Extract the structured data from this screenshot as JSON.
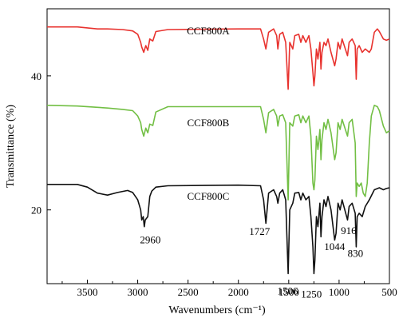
{
  "chart_data": {
    "type": "line",
    "title": "",
    "xlabel": "Wavenumbers (cm⁻¹)",
    "ylabel": "Transmittance (%)",
    "xlim": [
      3900,
      500
    ],
    "ylim": [
      9,
      50
    ],
    "x_reversed": true,
    "x_ticks": [
      "3500",
      "3000",
      "2500",
      "2000",
      "1500",
      "1000",
      "500"
    ],
    "y_ticks": [
      "20",
      "40"
    ],
    "grid": false,
    "legend": "none",
    "series": [
      {
        "name": "CCF800A",
        "color": "#e8322e",
        "points": [
          [
            3900,
            47.3
          ],
          [
            3600,
            47.3
          ],
          [
            3400,
            47.0
          ],
          [
            3300,
            47.0
          ],
          [
            3150,
            46.9
          ],
          [
            3050,
            46.7
          ],
          [
            3000,
            46.2
          ],
          [
            2970,
            45.0
          ],
          [
            2960,
            44.3
          ],
          [
            2940,
            43.5
          ],
          [
            2920,
            44.5
          ],
          [
            2900,
            43.8
          ],
          [
            2880,
            45.5
          ],
          [
            2850,
            45.2
          ],
          [
            2820,
            46.6
          ],
          [
            2700,
            46.9
          ],
          [
            2000,
            47.0
          ],
          [
            1780,
            47.0
          ],
          [
            1750,
            45.5
          ],
          [
            1727,
            44.0
          ],
          [
            1700,
            46.5
          ],
          [
            1650,
            47.0
          ],
          [
            1620,
            46.0
          ],
          [
            1608,
            44.0
          ],
          [
            1590,
            46.2
          ],
          [
            1560,
            46.5
          ],
          [
            1530,
            45.0
          ],
          [
            1506,
            38.0
          ],
          [
            1490,
            45.0
          ],
          [
            1460,
            44.0
          ],
          [
            1440,
            46.0
          ],
          [
            1400,
            46.2
          ],
          [
            1380,
            45.0
          ],
          [
            1360,
            46.0
          ],
          [
            1330,
            45.0
          ],
          [
            1300,
            46.0
          ],
          [
            1280,
            44.0
          ],
          [
            1260,
            40.5
          ],
          [
            1250,
            38.5
          ],
          [
            1240,
            40.0
          ],
          [
            1225,
            44.0
          ],
          [
            1210,
            42.5
          ],
          [
            1190,
            45.0
          ],
          [
            1180,
            41.0
          ],
          [
            1170,
            43.5
          ],
          [
            1150,
            45.0
          ],
          [
            1130,
            44.5
          ],
          [
            1110,
            45.5
          ],
          [
            1080,
            43.5
          ],
          [
            1044,
            41.5
          ],
          [
            1030,
            42.5
          ],
          [
            1010,
            45.0
          ],
          [
            990,
            44.0
          ],
          [
            970,
            45.5
          ],
          [
            916,
            43.0
          ],
          [
            900,
            45.0
          ],
          [
            870,
            45.5
          ],
          [
            840,
            44.5
          ],
          [
            830,
            39.5
          ],
          [
            820,
            44.0
          ],
          [
            800,
            44.5
          ],
          [
            770,
            43.5
          ],
          [
            740,
            44.0
          ],
          [
            700,
            43.5
          ],
          [
            680,
            44.0
          ],
          [
            650,
            46.5
          ],
          [
            620,
            47.0
          ],
          [
            600,
            46.6
          ],
          [
            560,
            45.5
          ],
          [
            530,
            45.3
          ],
          [
            500,
            45.5
          ]
        ]
      },
      {
        "name": "CCF800B",
        "color": "#72bf44",
        "points": [
          [
            3900,
            35.6
          ],
          [
            3600,
            35.5
          ],
          [
            3400,
            35.3
          ],
          [
            3300,
            35.2
          ],
          [
            3150,
            35.0
          ],
          [
            3050,
            34.8
          ],
          [
            3000,
            34.0
          ],
          [
            2970,
            33.0
          ],
          [
            2960,
            32.0
          ],
          [
            2940,
            31.0
          ],
          [
            2920,
            32.2
          ],
          [
            2900,
            31.5
          ],
          [
            2880,
            32.8
          ],
          [
            2850,
            32.6
          ],
          [
            2820,
            34.6
          ],
          [
            2700,
            35.4
          ],
          [
            2000,
            35.4
          ],
          [
            1780,
            35.4
          ],
          [
            1750,
            33.5
          ],
          [
            1727,
            31.5
          ],
          [
            1700,
            34.5
          ],
          [
            1650,
            35.0
          ],
          [
            1620,
            34.0
          ],
          [
            1608,
            32.5
          ],
          [
            1590,
            34.0
          ],
          [
            1560,
            34.2
          ],
          [
            1530,
            33.0
          ],
          [
            1506,
            21.5
          ],
          [
            1490,
            33.0
          ],
          [
            1460,
            32.5
          ],
          [
            1440,
            34.0
          ],
          [
            1400,
            34.2
          ],
          [
            1380,
            33.0
          ],
          [
            1360,
            34.0
          ],
          [
            1330,
            33.0
          ],
          [
            1300,
            34.0
          ],
          [
            1280,
            31.0
          ],
          [
            1260,
            24.0
          ],
          [
            1250,
            23.0
          ],
          [
            1240,
            24.5
          ],
          [
            1225,
            31.0
          ],
          [
            1210,
            29.0
          ],
          [
            1190,
            32.0
          ],
          [
            1180,
            27.5
          ],
          [
            1170,
            30.5
          ],
          [
            1150,
            33.0
          ],
          [
            1130,
            32.0
          ],
          [
            1110,
            33.5
          ],
          [
            1080,
            31.5
          ],
          [
            1044,
            27.5
          ],
          [
            1030,
            28.5
          ],
          [
            1010,
            33.0
          ],
          [
            990,
            32.0
          ],
          [
            970,
            33.5
          ],
          [
            916,
            31.0
          ],
          [
            900,
            33.0
          ],
          [
            870,
            33.5
          ],
          [
            840,
            30.0
          ],
          [
            830,
            22.0
          ],
          [
            820,
            24.0
          ],
          [
            800,
            23.5
          ],
          [
            780,
            24.0
          ],
          [
            760,
            22.5
          ],
          [
            740,
            22.0
          ],
          [
            720,
            24.0
          ],
          [
            700,
            30.0
          ],
          [
            680,
            34.0
          ],
          [
            650,
            35.6
          ],
          [
            620,
            35.4
          ],
          [
            600,
            34.8
          ],
          [
            560,
            32.5
          ],
          [
            530,
            31.5
          ],
          [
            500,
            31.8
          ]
        ]
      },
      {
        "name": "CCF800C",
        "color": "#111111",
        "points": [
          [
            3900,
            23.8
          ],
          [
            3600,
            23.8
          ],
          [
            3500,
            23.4
          ],
          [
            3400,
            22.5
          ],
          [
            3300,
            22.2
          ],
          [
            3200,
            22.6
          ],
          [
            3100,
            22.9
          ],
          [
            3050,
            22.6
          ],
          [
            3000,
            21.5
          ],
          [
            2970,
            20.0
          ],
          [
            2960,
            18.5
          ],
          [
            2945,
            19.0
          ],
          [
            2935,
            17.5
          ],
          [
            2925,
            18.5
          ],
          [
            2900,
            19.0
          ],
          [
            2880,
            22.0
          ],
          [
            2860,
            22.8
          ],
          [
            2820,
            23.4
          ],
          [
            2700,
            23.6
          ],
          [
            2000,
            23.7
          ],
          [
            1780,
            23.6
          ],
          [
            1750,
            21.5
          ],
          [
            1727,
            18.0
          ],
          [
            1700,
            22.5
          ],
          [
            1650,
            23.0
          ],
          [
            1620,
            22.0
          ],
          [
            1608,
            21.0
          ],
          [
            1590,
            22.5
          ],
          [
            1560,
            23.0
          ],
          [
            1530,
            21.5
          ],
          [
            1506,
            10.5
          ],
          [
            1490,
            20.0
          ],
          [
            1460,
            21.0
          ],
          [
            1440,
            22.5
          ],
          [
            1400,
            22.6
          ],
          [
            1380,
            21.5
          ],
          [
            1360,
            22.5
          ],
          [
            1330,
            21.5
          ],
          [
            1300,
            22.0
          ],
          [
            1280,
            19.0
          ],
          [
            1260,
            14.5
          ],
          [
            1250,
            10.5
          ],
          [
            1240,
            12.5
          ],
          [
            1225,
            19.0
          ],
          [
            1210,
            17.5
          ],
          [
            1190,
            21.0
          ],
          [
            1180,
            16.0
          ],
          [
            1170,
            19.0
          ],
          [
            1150,
            21.5
          ],
          [
            1130,
            20.5
          ],
          [
            1110,
            22.0
          ],
          [
            1080,
            20.0
          ],
          [
            1044,
            15.5
          ],
          [
            1030,
            16.5
          ],
          [
            1010,
            21.0
          ],
          [
            990,
            20.0
          ],
          [
            970,
            21.5
          ],
          [
            916,
            18.5
          ],
          [
            900,
            20.5
          ],
          [
            870,
            21.0
          ],
          [
            840,
            19.5
          ],
          [
            830,
            14.5
          ],
          [
            820,
            19.0
          ],
          [
            800,
            19.5
          ],
          [
            770,
            19.0
          ],
          [
            740,
            20.5
          ],
          [
            700,
            21.5
          ],
          [
            650,
            23.0
          ],
          [
            600,
            23.3
          ],
          [
            560,
            23.0
          ],
          [
            530,
            23.2
          ],
          [
            500,
            23.3
          ]
        ]
      }
    ],
    "series_labels": [
      {
        "text": "CCF800A",
        "x": 2300,
        "y": 46.2
      },
      {
        "text": "CCF800B",
        "x": 2300,
        "y": 32.5
      },
      {
        "text": "CCF800C",
        "x": 2300,
        "y": 21.5
      }
    ],
    "annotations": [
      {
        "text": "2960",
        "x": 2875,
        "y": 15.0
      },
      {
        "text": "1727",
        "x": 1790,
        "y": 16.3
      },
      {
        "text": "1506",
        "x": 1510,
        "y": 7.4
      },
      {
        "text": "1250",
        "x": 1275,
        "y": 6.9
      },
      {
        "text": "1044",
        "x": 1045,
        "y": 14.0
      },
      {
        "text": "916",
        "x": 905,
        "y": 16.4
      },
      {
        "text": "830",
        "x": 838,
        "y": 13.0
      }
    ]
  }
}
